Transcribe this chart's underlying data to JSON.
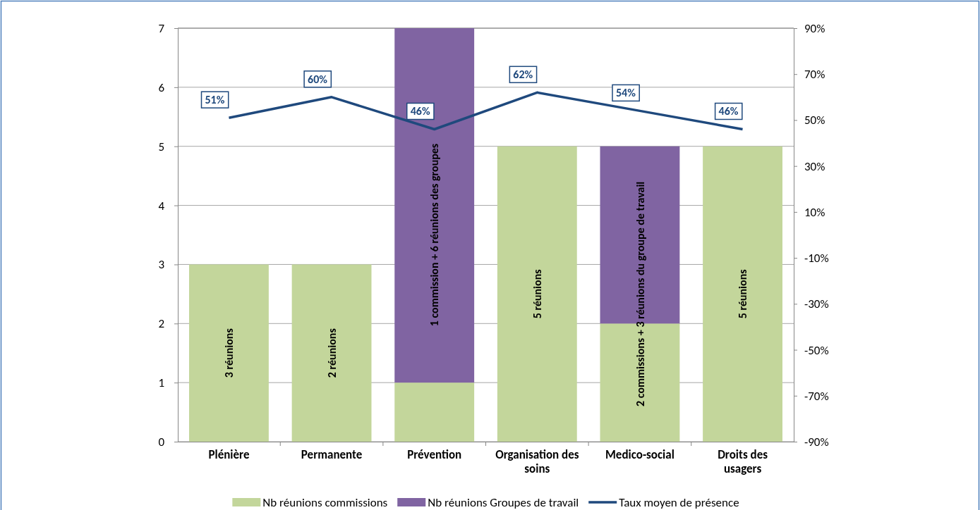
{
  "chart_data": {
    "type": "bar",
    "stacked": true,
    "categories": [
      "Plénière",
      "Permanente",
      "Prévention",
      "Organisation des soins",
      "Medico-social",
      "Droits des usagers"
    ],
    "series": [
      {
        "name": "Nb réunions commissions",
        "color": "#c3d69b",
        "values": [
          3,
          3,
          1,
          5,
          2,
          5
        ]
      },
      {
        "name": "Nb réunions Groupes de travail",
        "color": "#8064a2",
        "values": [
          0,
          0,
          6,
          0,
          3,
          0
        ]
      },
      {
        "name": "Taux moyen de présence",
        "type": "line",
        "axis": "y2",
        "color": "#1f497d",
        "values": [
          51,
          60,
          46,
          62,
          54,
          46
        ],
        "value_labels": [
          "51%",
          "60%",
          "46%",
          "62%",
          "54%",
          "46%"
        ]
      }
    ],
    "ylim": [
      0,
      7
    ],
    "yticks": [
      0,
      1,
      2,
      3,
      4,
      5,
      6,
      7
    ],
    "y2lim": [
      -90,
      90
    ],
    "y2ticks": [
      {
        "value": -90,
        "label": "-90%"
      },
      {
        "value": -70,
        "label": "-70%"
      },
      {
        "value": -50,
        "label": "-50%"
      },
      {
        "value": -30,
        "label": "-30%"
      },
      {
        "value": -10,
        "label": "-10%"
      },
      {
        "value": 10,
        "label": "10%"
      },
      {
        "value": 30,
        "label": "30%"
      },
      {
        "value": 50,
        "label": "50%"
      },
      {
        "value": 70,
        "label": "70%"
      },
      {
        "value": 90,
        "label": "90%"
      }
    ],
    "annotations": [
      "3 réunions",
      "2 réunions",
      "1 commission + 6 réunions des groupes",
      "5 réunions",
      "2 commissions + 3 réunions du groupe de travail",
      "5 réunions"
    ],
    "grid": "y",
    "legend": "bottom",
    "marker": "none",
    "line_style": "solid"
  }
}
